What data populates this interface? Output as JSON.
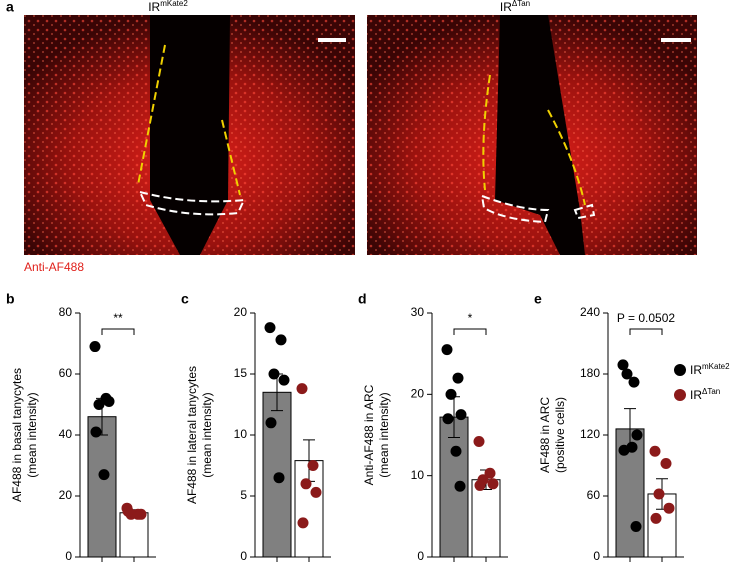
{
  "panel_a": {
    "panel": "a",
    "images": [
      {
        "name": "IR",
        "sup": "mKate2"
      },
      {
        "name": "IR",
        "sup": "ΔTan"
      }
    ],
    "stain": "Anti-AF488"
  },
  "groups": [
    {
      "name": "IR",
      "sup": "mKate2",
      "marker_color": "#000000",
      "bar_color": "#808080"
    },
    {
      "name": "IR",
      "sup": "ΔTan",
      "marker_color": "#8b1a1a",
      "bar_color": "#ffffff"
    }
  ],
  "chart_data": [
    {
      "type": "bar",
      "panel": "b",
      "ylabel": [
        "AF488 in basal tanycytes",
        "(mean intensity)"
      ],
      "ylim": [
        0,
        80
      ],
      "yticks": [
        0,
        20,
        40,
        60,
        80
      ],
      "categories": [
        null,
        null
      ],
      "values": [
        46,
        14.5
      ],
      "errors": [
        6,
        1
      ],
      "points": [
        [
          69,
          52,
          50,
          51,
          41,
          27
        ],
        [
          16,
          14,
          14,
          14,
          15
        ]
      ],
      "annotation": "**"
    },
    {
      "type": "bar",
      "panel": "c",
      "ylabel": [
        "AF488 in lateral tanycytes",
        "(mean intensity)"
      ],
      "ylim": [
        0,
        20
      ],
      "yticks": [
        0,
        5,
        10,
        15,
        20
      ],
      "categories": [
        null,
        null
      ],
      "values": [
        13.5,
        7.9
      ],
      "errors": [
        1.5,
        1.7
      ],
      "points": [
        [
          18.8,
          17.8,
          15,
          14.5,
          11,
          6.5
        ],
        [
          13.8,
          7.5,
          6,
          5.3,
          2.8
        ]
      ]
    },
    {
      "type": "bar",
      "panel": "d",
      "ylabel": [
        "Anti-AF488 in ARC",
        "(mean intensity)"
      ],
      "ylim": [
        0,
        30
      ],
      "yticks": [
        0,
        10,
        20,
        30
      ],
      "categories": [
        null,
        null
      ],
      "values": [
        17.2,
        9.5
      ],
      "errors": [
        2.5,
        1.2
      ],
      "points": [
        [
          25.5,
          22,
          20,
          17.5,
          17,
          13,
          8.7
        ],
        [
          14.2,
          10.3,
          9.5,
          9,
          8.8
        ]
      ],
      "annotation": "*"
    },
    {
      "type": "bar",
      "panel": "e",
      "ylabel": [
        "AF488 in ARC",
        "(positive cells)"
      ],
      "ylim": [
        0,
        240
      ],
      "yticks": [
        0,
        60,
        120,
        180,
        240
      ],
      "categories": [
        null,
        null
      ],
      "values": [
        126,
        62
      ],
      "errors": [
        20,
        15
      ],
      "points": [
        [
          189,
          172,
          180,
          120,
          105,
          108,
          30
        ],
        [
          104,
          92,
          62,
          48,
          38
        ]
      ],
      "annotation": "P = 0.0502"
    }
  ]
}
